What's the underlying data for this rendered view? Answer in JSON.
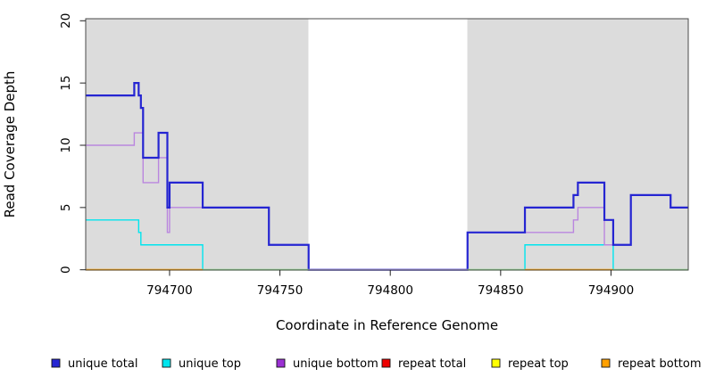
{
  "chart_data": {
    "type": "line",
    "step": true,
    "title": "",
    "xlabel": "Coordinate in Reference Genome",
    "ylabel": "Read Coverage Depth",
    "x_axis": {
      "min": 794662,
      "max": 794935,
      "ticks": [
        794700,
        794750,
        794800,
        794850,
        794900
      ]
    },
    "y_axis": {
      "min": 0,
      "max": 20,
      "ticks": [
        0,
        5,
        10,
        15,
        20
      ]
    },
    "plot_bg_color": "#DCDCDC",
    "background_regions": [
      {
        "from": 794662,
        "to": 794763
      },
      {
        "from": 794835,
        "to": 794935
      }
    ],
    "gap_region": {
      "from": 794763,
      "to": 794835
    },
    "draw_order": [
      "unique top",
      "unique bottom",
      "unique total"
    ],
    "series": [
      {
        "name": "unique total",
        "color": "#2525D2",
        "line_width": 2.2,
        "end": 794935,
        "steps": [
          [
            794662,
            14
          ],
          [
            794684,
            15
          ],
          [
            794686,
            14
          ],
          [
            794687,
            13
          ],
          [
            794688,
            9
          ],
          [
            794695,
            11
          ],
          [
            794699,
            5
          ],
          [
            794700,
            7
          ],
          [
            794715,
            5
          ],
          [
            794745,
            2
          ],
          [
            794763,
            0
          ],
          [
            794835,
            3
          ],
          [
            794861,
            5
          ],
          [
            794883,
            6
          ],
          [
            794885,
            7
          ],
          [
            794897,
            4
          ],
          [
            794901,
            2
          ],
          [
            794909,
            6
          ],
          [
            794927,
            5
          ]
        ]
      },
      {
        "name": "unique top",
        "color": "#00E5EE",
        "line_width": 1.4,
        "end": 794935,
        "steps": [
          [
            794662,
            4
          ],
          [
            794686,
            3
          ],
          [
            794687,
            2
          ],
          [
            794715,
            0
          ],
          [
            794861,
            2
          ],
          [
            794901,
            0
          ]
        ]
      },
      {
        "name": "unique bottom",
        "color": "#9B30D3",
        "line_color": "#BA86DF",
        "line_width": 1.4,
        "end": 794935,
        "steps": [
          [
            794662,
            10
          ],
          [
            794684,
            11
          ],
          [
            794688,
            7
          ],
          [
            794695,
            9
          ],
          [
            794699,
            3
          ],
          [
            794700,
            5
          ],
          [
            794745,
            2
          ],
          [
            794763,
            0
          ],
          [
            794835,
            3
          ],
          [
            794883,
            4
          ],
          [
            794885,
            5
          ],
          [
            794897,
            2
          ],
          [
            794909,
            6
          ],
          [
            794927,
            5
          ]
        ]
      },
      {
        "name": "repeat total",
        "color": "#EE0000",
        "line_width": 1.4,
        "segments": [
          {
            "from": 794662,
            "to": 794763,
            "value": 0
          },
          {
            "from": 794835,
            "to": 794935,
            "value": 0
          }
        ]
      },
      {
        "name": "repeat top",
        "color": "#FFFF00",
        "line_width": 1.4,
        "segments": [
          {
            "from": 794662,
            "to": 794763,
            "value": 0
          },
          {
            "from": 794835,
            "to": 794935,
            "value": 0
          }
        ]
      },
      {
        "name": "repeat bottom",
        "color": "#FFA000",
        "line_width": 1.8,
        "segments": [
          {
            "from": 794662,
            "to": 794715,
            "value": 0
          },
          {
            "from": 794861,
            "to": 794901,
            "value": 0
          }
        ]
      }
    ],
    "baseline_segments": [
      {
        "from": 794662,
        "to": 794715,
        "color": "#FFA000"
      },
      {
        "from": 794715,
        "to": 794763,
        "color": "#90D890"
      },
      {
        "from": 794763,
        "to": 794835,
        "color": "#9D8FE8"
      },
      {
        "from": 794835,
        "to": 794861,
        "color": "#90D890"
      },
      {
        "from": 794861,
        "to": 794901,
        "color": "#FFA000"
      },
      {
        "from": 794901,
        "to": 794935,
        "color": "#90D890"
      }
    ],
    "legend": {
      "position": "bottom"
    }
  }
}
